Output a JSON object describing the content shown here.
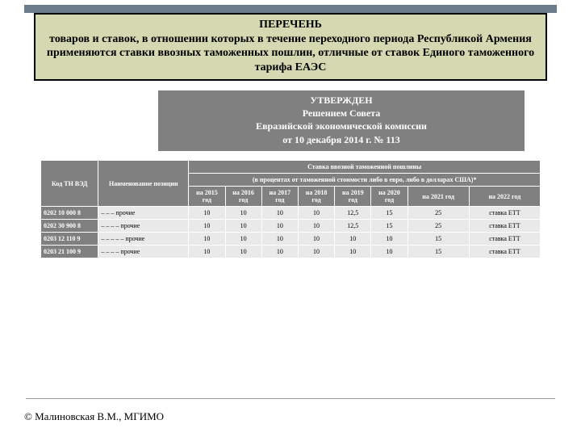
{
  "title": {
    "line1": "ПЕРЕЧЕНЬ",
    "line2": "товаров и ставок, в отношении которых в течение переходного периода Республикой Армения применяются ставки ввозных таможенных пошлин, отличные от ставок Единого таможенного тарифа ЕАЭС"
  },
  "approval": {
    "line1": "УТВЕРЖДЕН",
    "line2": "Решением Совета",
    "line3": "Евразийской экономической комиссии",
    "line4": "от 10 декабря 2014 г. № 113"
  },
  "table": {
    "h_code": "Код ТН ВЭД",
    "h_name": "Наименование позиции",
    "h_rate_top": "Ставка ввозной таможенной пошлины",
    "h_rate_sub": "(в процентах от таможенной стоимости либо в евро, либо в долларах США)*",
    "y2015": "на 2015 год",
    "y2016": "на 2016 год",
    "y2017": "на 2017 год",
    "y2018": "на 2018 год",
    "y2019": "на 2019 год",
    "y2020": "на 2020 год",
    "y2021": "на 2021 год",
    "y2022": "на 2022 год",
    "rows": [
      {
        "code": "0202 10 000 8",
        "name": "– – – прочие",
        "v": [
          "10",
          "10",
          "10",
          "10",
          "12,5",
          "15",
          "25",
          "ставка ЕТТ"
        ]
      },
      {
        "code": "0202 30 900 8",
        "name": "– – – – прочие",
        "v": [
          "10",
          "10",
          "10",
          "10",
          "12,5",
          "15",
          "25",
          "ставка ЕТТ"
        ]
      },
      {
        "code": "0203 12 110 9",
        "name": "– – – – – прочие",
        "v": [
          "10",
          "10",
          "10",
          "10",
          "10",
          "10",
          "15",
          "ставка ЕТТ"
        ]
      },
      {
        "code": "0203 21 100 9",
        "name": "– – – – прочие",
        "v": [
          "10",
          "10",
          "10",
          "10",
          "10",
          "10",
          "15",
          "ставка ЕТТ"
        ]
      }
    ]
  },
  "copyright": "© Малиновская В.М., МГИМО",
  "colors": {
    "title_bg": "#d5d9b1",
    "title_border": "#000000",
    "header_bg": "#808080",
    "header_fg": "#ffffff",
    "cell_bg": "#e9e9e9",
    "top_bar": "#6b7b8c"
  }
}
